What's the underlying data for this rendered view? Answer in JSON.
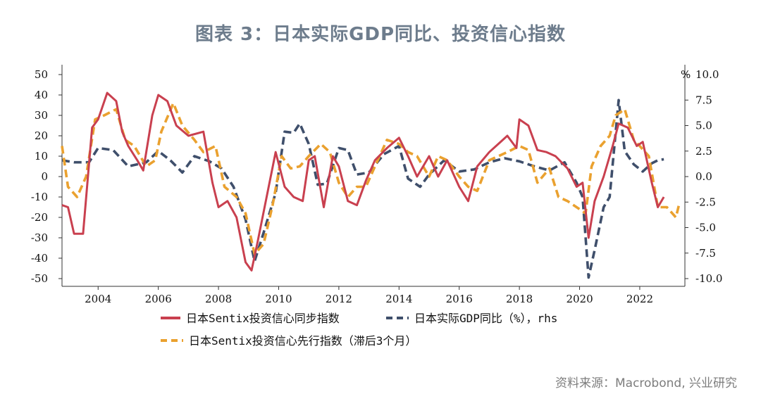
{
  "title": "图表 3：日本实际GDP同比、投资信心指数",
  "source": "资料来源：Macrobond, 兴业研究",
  "colors": {
    "red": "#c9404f",
    "navy": "#3f4f6b",
    "orange": "#eaa12f"
  },
  "legend": {
    "item1": "日本Sentix投资信心同步指数",
    "item2": "日本实际GDP同比（%），rhs",
    "item3": "日本Sentix投资信心先行指数（滞后3个月）"
  },
  "chart_data": {
    "type": "line",
    "x_range": [
      2002.8,
      2023.5
    ],
    "x_ticks": [
      "2004",
      "2006",
      "2008",
      "2010",
      "2012",
      "2014",
      "2016",
      "2018",
      "2020",
      "2022"
    ],
    "y_left": {
      "range": [
        -50,
        50
      ],
      "ticks": [
        "50",
        "40",
        "30",
        "20",
        "10",
        "0",
        "-10",
        "-20",
        "-30",
        "-40",
        "-50"
      ]
    },
    "y_right": {
      "range": [
        -10,
        10
      ],
      "unit": "%",
      "ticks": [
        "10.0",
        "7.5",
        "5.0",
        "2.5",
        "0.0",
        "-2.5",
        "-5.0",
        "-7.5",
        "-10.0"
      ]
    },
    "series": [
      {
        "name": "日本Sentix投资信心同步指数",
        "axis": "left",
        "color": "#c9404f",
        "style": "solid",
        "x": [
          2002.8,
          2003.0,
          2003.2,
          2003.5,
          2003.8,
          2004.0,
          2004.3,
          2004.6,
          2004.8,
          2005.0,
          2005.3,
          2005.5,
          2005.8,
          2006.0,
          2006.3,
          2006.6,
          2007.0,
          2007.5,
          2007.8,
          2008.0,
          2008.3,
          2008.6,
          2008.9,
          2009.1,
          2009.3,
          2009.6,
          2009.9,
          2010.2,
          2010.5,
          2010.8,
          2011.0,
          2011.2,
          2011.5,
          2011.8,
          2012.0,
          2012.3,
          2012.6,
          2012.9,
          2013.2,
          2013.6,
          2014.0,
          2014.3,
          2014.6,
          2015.0,
          2015.3,
          2015.6,
          2016.0,
          2016.3,
          2016.6,
          2017.0,
          2017.3,
          2017.6,
          2017.9,
          2018.0,
          2018.3,
          2018.6,
          2018.9,
          2019.2,
          2019.6,
          2019.9,
          2020.1,
          2020.3,
          2020.5,
          2020.8,
          2021.1,
          2021.3,
          2021.6,
          2021.9,
          2022.1,
          2022.4,
          2022.6,
          2022.8
        ],
        "y": [
          -14,
          -15,
          -28,
          -28,
          24,
          28,
          41,
          37,
          22,
          15,
          8,
          3,
          30,
          40,
          37,
          25,
          20,
          22,
          -3,
          -15,
          -12,
          -20,
          -42,
          -46,
          -32,
          -10,
          12,
          -5,
          -10,
          -12,
          8,
          10,
          -15,
          10,
          5,
          -12,
          -14,
          -2,
          8,
          14,
          19,
          10,
          0,
          10,
          0,
          8,
          -5,
          -12,
          5,
          12,
          16,
          20,
          14,
          28,
          25,
          13,
          12,
          10,
          4,
          -5,
          -3,
          -30,
          -12,
          0,
          15,
          26,
          24,
          15,
          17,
          -3,
          -15,
          -10
        ]
      },
      {
        "name": "日本实际GDP同比（%），rhs",
        "axis": "right",
        "color": "#3f4f6b",
        "style": "dash",
        "x": [
          2002.8,
          2003.2,
          2003.7,
          2004.0,
          2004.5,
          2005.0,
          2005.6,
          2006.0,
          2006.4,
          2006.8,
          2007.2,
          2007.7,
          2008.1,
          2008.5,
          2008.9,
          2009.2,
          2009.5,
          2009.9,
          2010.2,
          2010.5,
          2010.7,
          2011.0,
          2011.3,
          2011.6,
          2012.0,
          2012.3,
          2012.6,
          2013.0,
          2013.5,
          2014.0,
          2014.3,
          2014.7,
          2015.0,
          2015.5,
          2016.0,
          2016.5,
          2017.0,
          2017.5,
          2018.0,
          2018.5,
          2019.0,
          2019.5,
          2019.9,
          2020.1,
          2020.3,
          2020.5,
          2020.8,
          2021.0,
          2021.3,
          2021.5,
          2021.8,
          2022.1,
          2022.4,
          2022.6,
          2022.8
        ],
        "y": [
          1.6,
          1.4,
          1.4,
          2.8,
          2.6,
          1.0,
          1.4,
          2.5,
          1.6,
          0.4,
          2.0,
          1.5,
          0.8,
          -1.0,
          -4.2,
          -8.3,
          -5.5,
          -1.6,
          4.4,
          4.3,
          5.2,
          3.2,
          -0.8,
          -0.7,
          2.8,
          2.6,
          0.2,
          0.4,
          2.2,
          3.0,
          -0.2,
          -1.0,
          0.2,
          1.6,
          0.5,
          0.7,
          1.4,
          1.8,
          1.5,
          1.0,
          0.6,
          1.4,
          -0.6,
          -2.0,
          -9.9,
          -7.2,
          -3.0,
          -2.0,
          7.5,
          2.5,
          1.2,
          0.5,
          1.3,
          1.6,
          1.7
        ]
      },
      {
        "name": "日本Sentix投资信心先行指数（滞后3个月）",
        "axis": "left",
        "color": "#eaa12f",
        "style": "dash",
        "x": [
          2002.8,
          2003.0,
          2003.3,
          2003.6,
          2003.9,
          2004.2,
          2004.6,
          2004.9,
          2005.2,
          2005.6,
          2005.9,
          2006.1,
          2006.5,
          2006.8,
          2007.2,
          2007.5,
          2007.9,
          2008.2,
          2008.6,
          2008.9,
          2009.2,
          2009.5,
          2009.8,
          2010.1,
          2010.4,
          2010.7,
          2011.0,
          2011.4,
          2011.7,
          2012.0,
          2012.3,
          2012.6,
          2012.9,
          2013.2,
          2013.6,
          2014.0,
          2014.3,
          2014.6,
          2015.0,
          2015.3,
          2015.6,
          2016.0,
          2016.3,
          2016.6,
          2017.0,
          2017.3,
          2017.6,
          2018.0,
          2018.3,
          2018.6,
          2019.0,
          2019.3,
          2019.6,
          2019.9,
          2020.2,
          2020.4,
          2020.7,
          2021.0,
          2021.2,
          2021.5,
          2021.8,
          2022.0,
          2022.3,
          2022.6,
          2022.9,
          2023.2,
          2023.3
        ],
        "y": [
          15,
          -5,
          -10,
          0,
          28,
          30,
          33,
          18,
          15,
          5,
          8,
          22,
          36,
          25,
          18,
          12,
          15,
          -5,
          -10,
          -18,
          -38,
          -33,
          -14,
          10,
          4,
          5,
          10,
          16,
          12,
          -3,
          -10,
          -5,
          -5,
          5,
          18,
          16,
          12,
          10,
          0,
          10,
          8,
          0,
          -5,
          -7,
          8,
          10,
          12,
          15,
          13,
          -3,
          4,
          -10,
          -12,
          -15,
          -18,
          5,
          15,
          20,
          30,
          33,
          18,
          15,
          10,
          -15,
          -15,
          -20,
          -14
        ]
      }
    ]
  }
}
